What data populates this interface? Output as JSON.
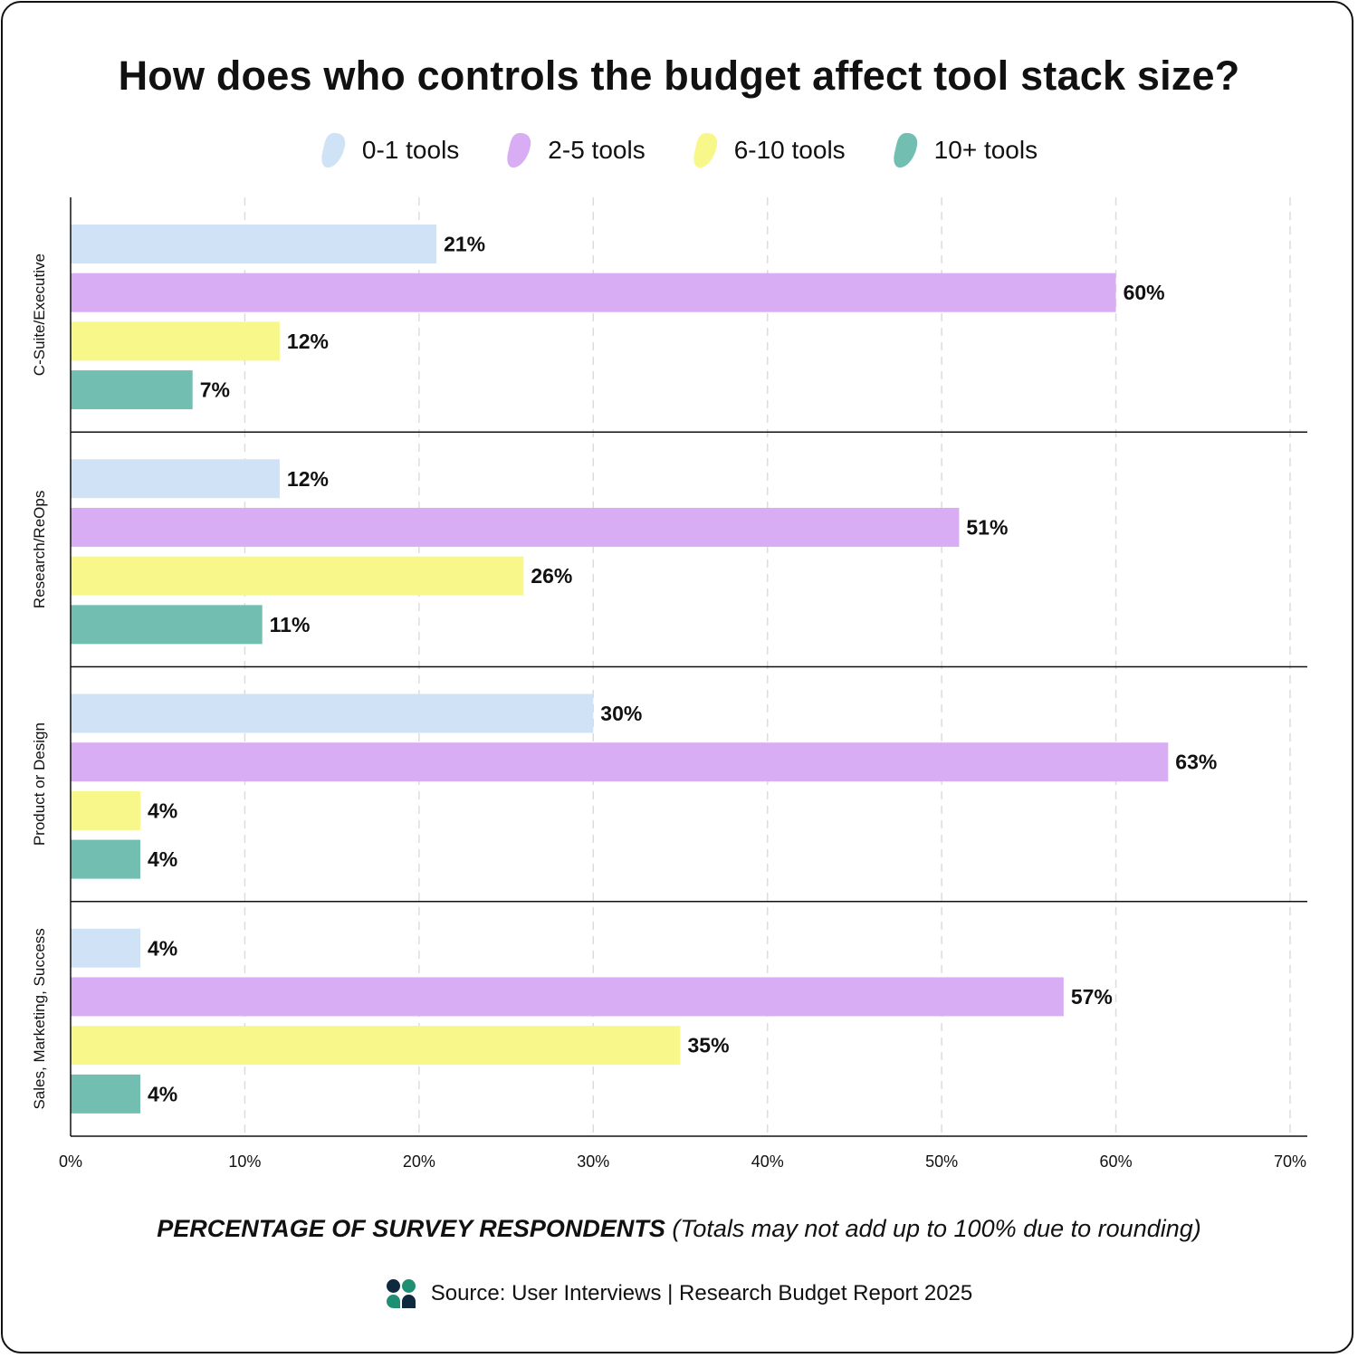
{
  "title": "How does who controls the budget affect tool stack size?",
  "legend": [
    {
      "label": "0-1 tools",
      "color": "#cfe2f6"
    },
    {
      "label": "2-5 tools",
      "color": "#d9adf3"
    },
    {
      "label": "6-10 tools",
      "color": "#f8f88a"
    },
    {
      "label": "10+ tools",
      "color": "#72beb1"
    }
  ],
  "xlabel_strong": "PERCENTAGE OF SURVEY RESPONDENTS",
  "xlabel_note": "(Totals may not add up to 100% due to rounding)",
  "source": "Source: User Interviews | Research Budget Report 2025",
  "chart_data": {
    "type": "bar",
    "orientation": "horizontal",
    "title": "How does who controls the budget affect tool stack size?",
    "xlabel": "PERCENTAGE OF SURVEY RESPONDENTS (Totals may not add up to 100% due to rounding)",
    "ylabel": "",
    "xlim": [
      0,
      70
    ],
    "x_ticks": [
      "0%",
      "10%",
      "20%",
      "30%",
      "40%",
      "50%",
      "60%",
      "70%"
    ],
    "grid": "vertical dashed",
    "legend_position": "top-center",
    "categories": [
      "C-Suite/Executive",
      "Research/ReOps",
      "Product or Design",
      "Sales, Marketing, Success"
    ],
    "series": [
      {
        "name": "0-1 tools",
        "color": "#cfe2f6",
        "values": [
          21,
          12,
          30,
          4
        ]
      },
      {
        "name": "2-5 tools",
        "color": "#d9adf3",
        "values": [
          60,
          51,
          63,
          57
        ]
      },
      {
        "name": "6-10 tools",
        "color": "#f8f88a",
        "values": [
          12,
          26,
          4,
          35
        ]
      },
      {
        "name": "10+ tools",
        "color": "#72beb1",
        "values": [
          7,
          11,
          4,
          4
        ]
      }
    ]
  }
}
